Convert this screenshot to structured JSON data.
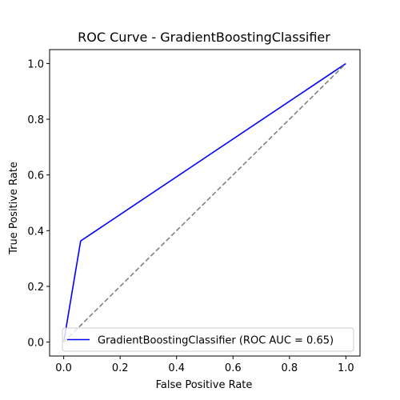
{
  "chart_data": {
    "type": "line",
    "title": "ROC Curve - GradientBoostingClassifier",
    "xlabel": "False Positive Rate",
    "ylabel": "True Positive Rate",
    "xlim": [
      -0.05,
      1.05
    ],
    "ylim": [
      -0.05,
      1.05
    ],
    "xticks": [
      0.0,
      0.2,
      0.4,
      0.6,
      0.8,
      1.0
    ],
    "xtick_labels": [
      "0.0",
      "0.2",
      "0.4",
      "0.6",
      "0.8",
      "1.0"
    ],
    "yticks": [
      0.0,
      0.2,
      0.4,
      0.6,
      0.8,
      1.0
    ],
    "ytick_labels": [
      "0.0",
      "0.2",
      "0.4",
      "0.6",
      "0.8",
      "1.0"
    ],
    "grid": false,
    "legend_position": "lower right",
    "series": [
      {
        "name": "GradientBoostingClassifier (ROC AUC = 0.65)",
        "color": "#0000ff",
        "style": "solid",
        "x": [
          0.0,
          0.06,
          1.0
        ],
        "y": [
          0.0,
          0.363,
          1.0
        ]
      },
      {
        "color": "#808080",
        "style": "dashed",
        "x": [
          0.0,
          1.0
        ],
        "y": [
          0.0,
          1.0
        ]
      }
    ]
  }
}
